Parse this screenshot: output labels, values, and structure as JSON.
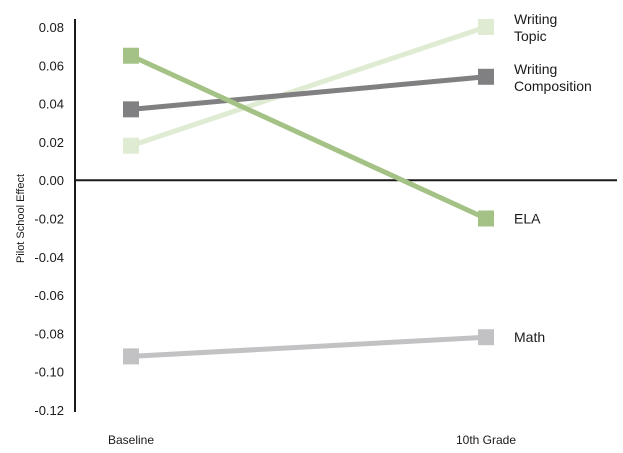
{
  "chart_data": {
    "type": "line",
    "categories": [
      "Baseline",
      "10th Grade"
    ],
    "ylabel": "Pilot School Effect",
    "ylim": [
      -0.12,
      0.08
    ],
    "yticks": [
      "0.08",
      "0.06",
      "0.04",
      "0.02",
      "0.00",
      "-0.02",
      "-0.04",
      "-0.06",
      "-0.08",
      "-0.10",
      "-0.12"
    ],
    "grid": false,
    "series": [
      {
        "name": "Writing Topic",
        "label_lines": [
          "Writing",
          "Topic"
        ],
        "values": [
          0.018,
          0.08
        ],
        "color": "#e0ebd3"
      },
      {
        "name": "Writing Composition",
        "label_lines": [
          "Writing",
          "Composition"
        ],
        "values": [
          0.037,
          0.054
        ],
        "color": "#808082"
      },
      {
        "name": "ELA",
        "label_lines": [
          "ELA"
        ],
        "values": [
          0.065,
          -0.02
        ],
        "color": "#a4c285"
      },
      {
        "name": "Math",
        "label_lines": [
          "Math"
        ],
        "values": [
          -0.092,
          -0.082
        ],
        "color": "#c2c2c4"
      }
    ]
  }
}
